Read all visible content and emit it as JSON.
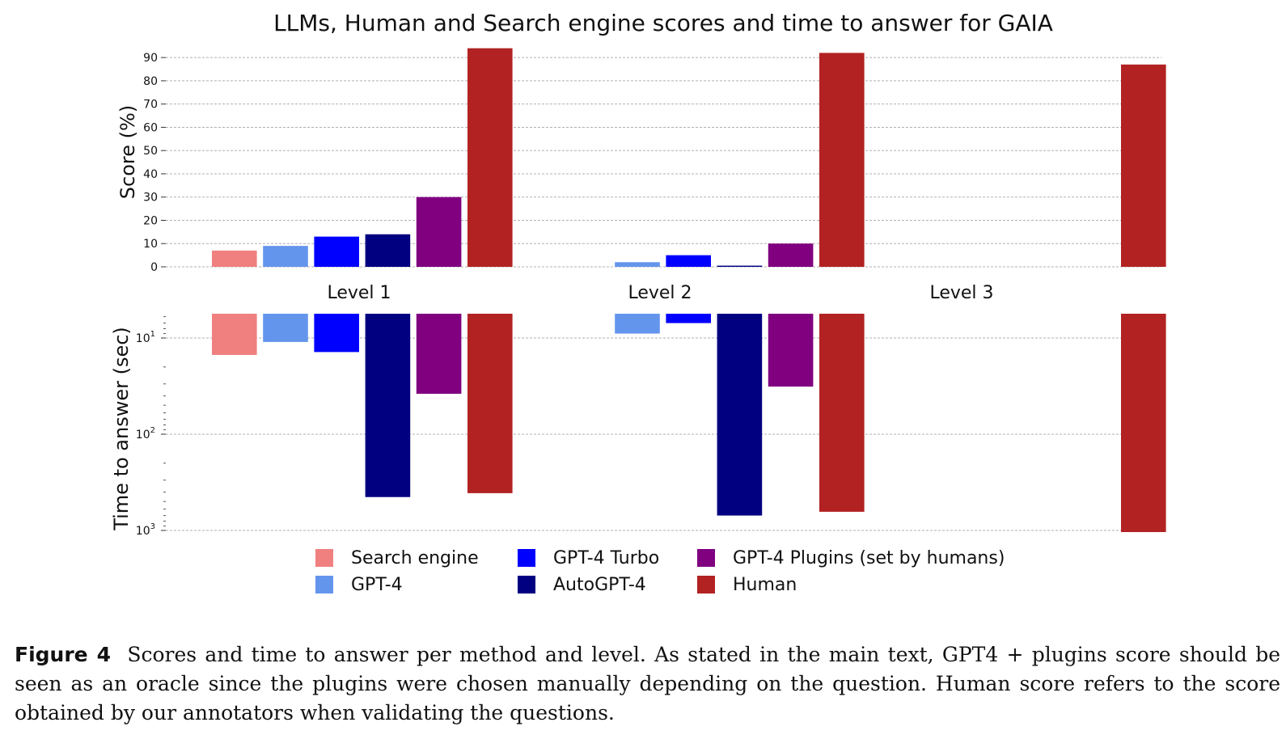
{
  "chart_data": {
    "title": "LLMs, Human and Search engine scores and time to answer for GAIA",
    "type": "bar",
    "categories": [
      "Level 1",
      "Level 2",
      "Level 3"
    ],
    "series": [
      {
        "name": "Search engine",
        "color": "#f08080",
        "score": [
          7,
          null,
          null
        ],
        "time": [
          15,
          null,
          null
        ]
      },
      {
        "name": "GPT-4",
        "color": "#6495ed",
        "score": [
          9,
          2,
          null
        ],
        "time": [
          11,
          9,
          null
        ]
      },
      {
        "name": "GPT-4 Turbo",
        "color": "#0000ff",
        "score": [
          13,
          5,
          null
        ],
        "time": [
          14,
          7,
          null
        ]
      },
      {
        "name": "AutoGPT-4",
        "color": "#000080",
        "score": [
          14,
          0.5,
          null
        ],
        "time": [
          450,
          700,
          null
        ]
      },
      {
        "name": "GPT-4 Plugins (set by humans)",
        "color": "#800080",
        "score": [
          30,
          10,
          null
        ],
        "time": [
          38,
          32,
          null
        ]
      },
      {
        "name": "Human",
        "color": "#b22222",
        "score": [
          94,
          92,
          87
        ],
        "time": [
          410,
          640,
          1040
        ]
      }
    ],
    "top_panel": {
      "ylabel": "Score (%)",
      "ylim": [
        0,
        95
      ],
      "yticks": [
        "0",
        "10",
        "20",
        "30",
        "40",
        "50",
        "60",
        "70",
        "80",
        "90"
      ],
      "grid": true
    },
    "bottom_panel": {
      "ylabel": "Time to answer (sec)",
      "yscale": "log",
      "inverted": true,
      "ylim": [
        5,
        1000
      ],
      "yticks": [
        {
          "base": "10",
          "exp": "1"
        },
        {
          "base": "10",
          "exp": "2"
        },
        {
          "base": "10",
          "exp": "3"
        }
      ],
      "grid": true
    },
    "legend_position": "bottom-center"
  },
  "caption": {
    "label": "Figure 4",
    "text": "Scores and time to answer per method and level. As stated in the main text, GPT4 + plugins score should be seen as an oracle since the plugins were chosen manually depending on the question. Human score refers to the score obtained by our annotators when validating the questions."
  }
}
